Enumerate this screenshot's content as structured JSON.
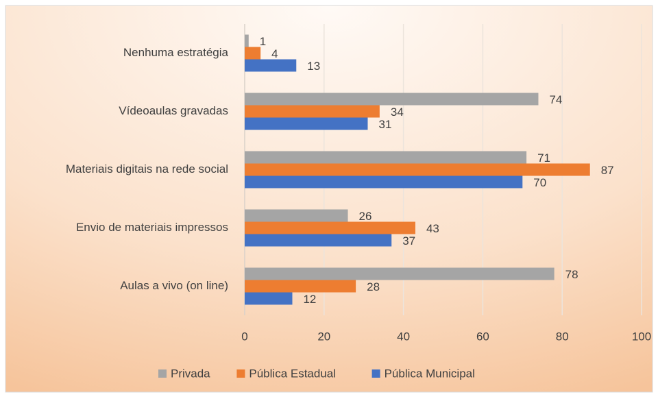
{
  "chart_data": {
    "type": "bar",
    "orientation": "horizontal",
    "categories": [
      "Nenhuma estratégia",
      "Vídeoaulas gravadas",
      "Materiais digitais na rede social",
      "Envio de materiais impressos",
      "Aulas a vivo (on line)"
    ],
    "series": [
      {
        "name": "Privada",
        "color": "#a5a5a5",
        "values": [
          1,
          74,
          71,
          26,
          78
        ]
      },
      {
        "name": "Pública Estadual",
        "color": "#ed7d31",
        "values": [
          4,
          34,
          87,
          43,
          28
        ]
      },
      {
        "name": "Pública Municipal",
        "color": "#4472c4",
        "values": [
          13,
          31,
          70,
          37,
          12
        ]
      }
    ],
    "xlim": [
      0,
      100
    ],
    "xticks": [
      0,
      20,
      40,
      60,
      80,
      100
    ],
    "grid": true,
    "legend": "bottom"
  }
}
